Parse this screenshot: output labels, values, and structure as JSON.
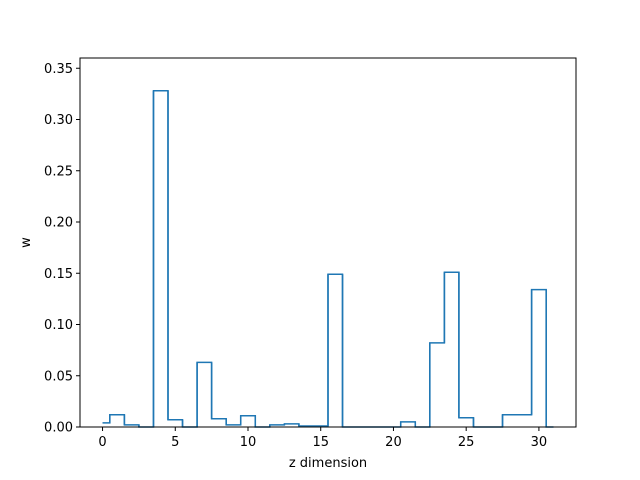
{
  "chart_data": {
    "type": "line",
    "style": "step",
    "title": "",
    "xlabel": "z dimension",
    "ylabel": "w",
    "xlim": [
      -1.55,
      32.55
    ],
    "ylim": [
      0,
      0.36
    ],
    "xticks": [
      0,
      5,
      10,
      15,
      20,
      25,
      30
    ],
    "xtick_labels": [
      "0",
      "5",
      "10",
      "15",
      "20",
      "25",
      "30"
    ],
    "yticks": [
      0.0,
      0.05,
      0.1,
      0.15,
      0.2,
      0.25,
      0.3,
      0.35
    ],
    "ytick_labels": [
      "0.00",
      "0.05",
      "0.10",
      "0.15",
      "0.20",
      "0.25",
      "0.30",
      "0.35"
    ],
    "grid": false,
    "line_color": "#1f77b4",
    "series": [
      {
        "x": [
          0,
          1,
          2,
          3,
          4,
          5,
          6,
          7,
          8,
          9,
          10,
          11,
          12,
          13,
          14,
          15,
          16,
          17,
          18,
          19,
          20,
          21,
          22,
          23,
          24,
          25,
          26,
          27,
          28,
          29,
          30,
          31
        ],
        "values": [
          0.004,
          0.012,
          0.002,
          0.0,
          0.328,
          0.007,
          0.0,
          0.063,
          0.008,
          0.002,
          0.011,
          0.0,
          0.002,
          0.003,
          0.001,
          0.001,
          0.149,
          0.0,
          0.0,
          0.0,
          0.0,
          0.005,
          0.0,
          0.082,
          0.151,
          0.009,
          0.0,
          0.0,
          0.012,
          0.012,
          0.134,
          0.0
        ]
      }
    ]
  }
}
